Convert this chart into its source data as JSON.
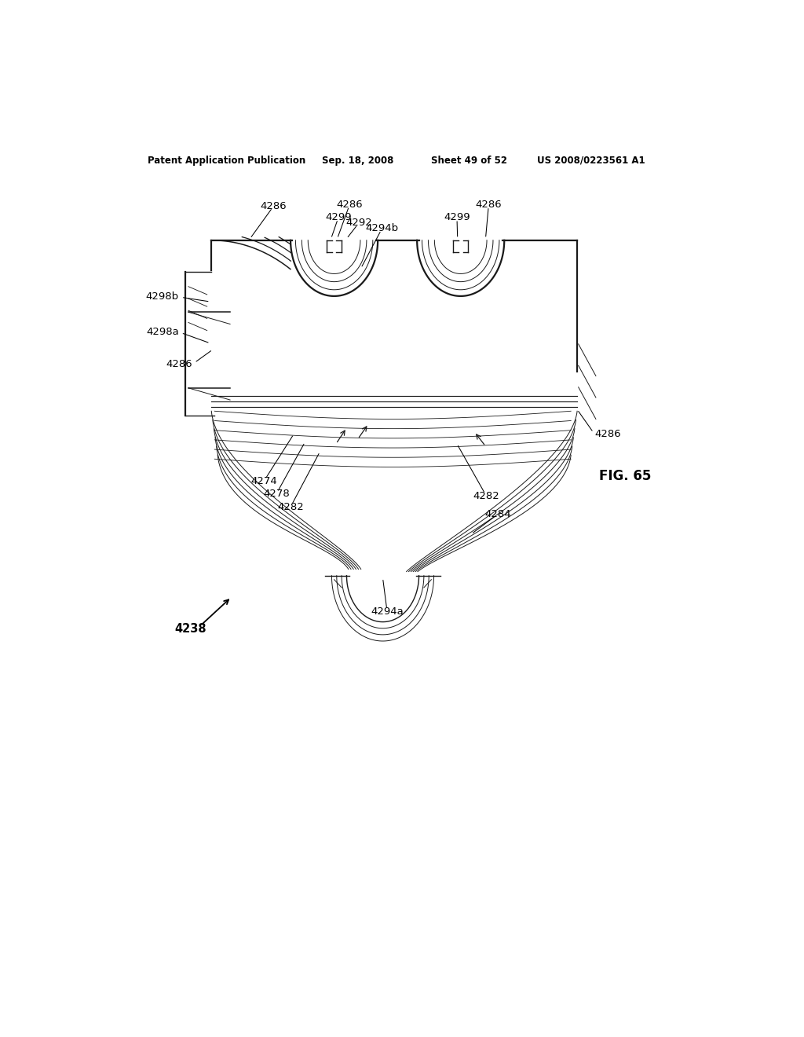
{
  "bg_color": "#ffffff",
  "line_color": "#1a1a1a",
  "header_left": "Patent Application Publication",
  "header_date": "Sep. 18, 2008",
  "header_sheet": "Sheet 49 of 52",
  "header_patent": "US 2008/0223561 A1",
  "fig_label": "FIG. 65",
  "font_size_header": 8.5,
  "font_size_label": 9.5
}
